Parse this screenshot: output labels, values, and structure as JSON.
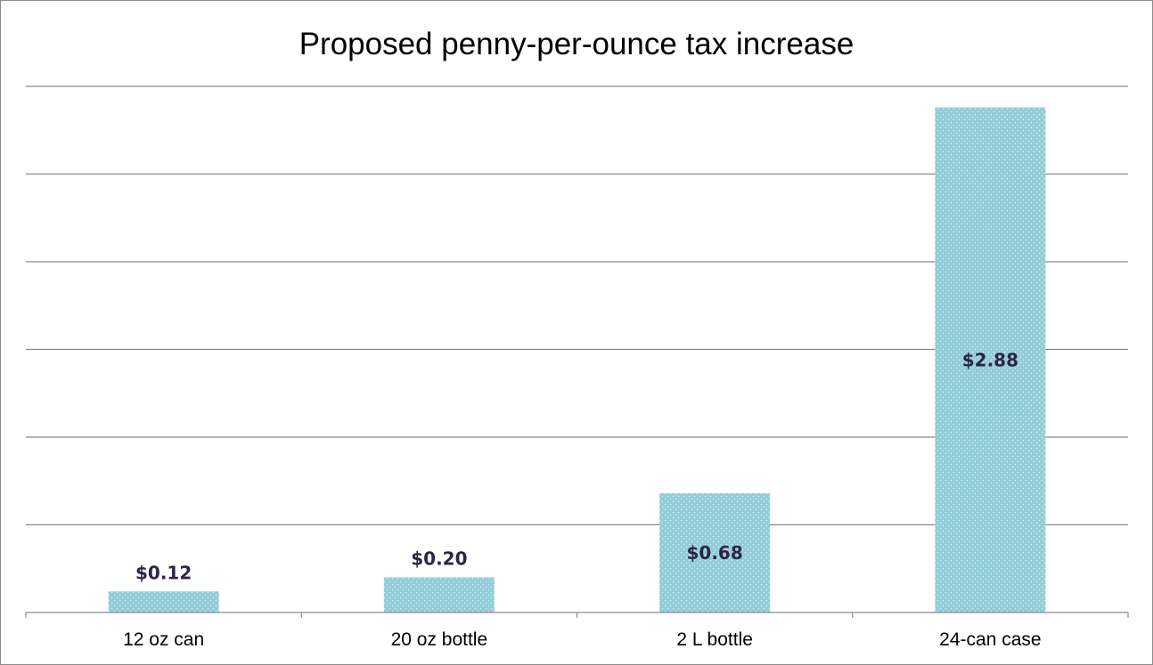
{
  "chart_data": {
    "type": "bar",
    "title": "Proposed penny-per-ounce tax increase",
    "categories": [
      "12 oz can",
      "20 oz bottle",
      "2 L bottle",
      "24-can case"
    ],
    "values": [
      0.12,
      0.2,
      0.68,
      2.88
    ],
    "data_labels": [
      "$0.12",
      "$0.20",
      "$0.68",
      "$2.88"
    ],
    "xlabel": "",
    "ylabel": "",
    "ylim": [
      0,
      3.0
    ],
    "ytick_step": 0.5,
    "show_y_tick_labels": false,
    "grid": true,
    "legend": "none",
    "bar_color": "#93cdda",
    "bar_dot_color": "#d9eef3",
    "label_color": "#2e2545"
  }
}
